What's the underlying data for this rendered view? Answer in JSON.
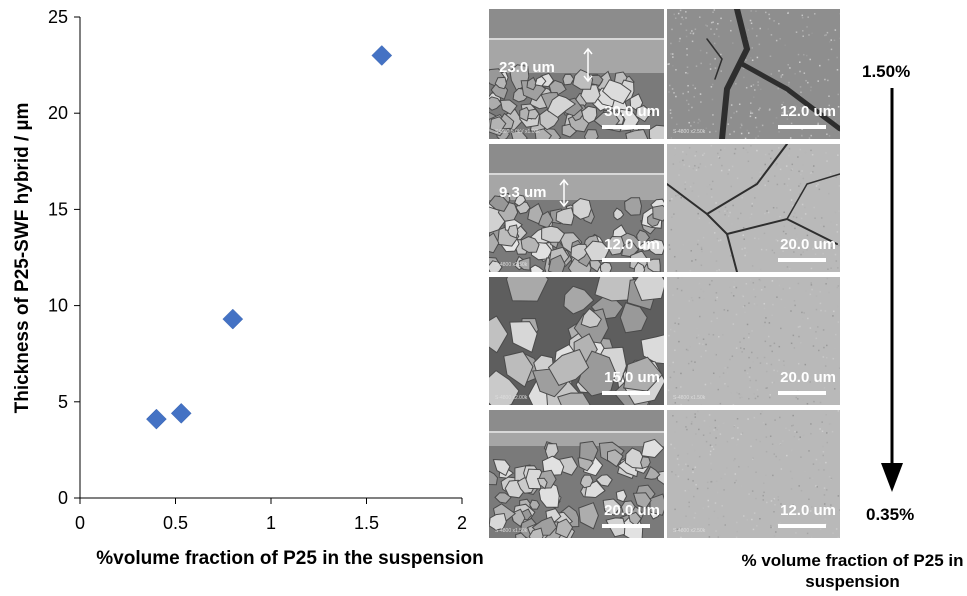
{
  "chart_data": {
    "type": "scatter",
    "xlabel": "%volume fraction of P25 in the suspension",
    "ylabel": "Thickness of P25-SWF hybrid / µm",
    "xlim": [
      0,
      2
    ],
    "ylim": [
      0,
      25
    ],
    "x_ticks": [
      "0",
      "0.5",
      "1",
      "1.5",
      "2"
    ],
    "y_ticks": [
      "0",
      "5",
      "10",
      "15",
      "20",
      "25"
    ],
    "grid": false,
    "marker": "diamond",
    "marker_color": "#4472C4",
    "points": [
      {
        "x": 0.4,
        "y": 4.1
      },
      {
        "x": 0.53,
        "y": 4.4
      },
      {
        "x": 0.8,
        "y": 9.3
      },
      {
        "x": 1.58,
        "y": 23.0
      }
    ]
  },
  "sem_images": {
    "rows": [
      {
        "left": {
          "scale_label": "30.0 um",
          "thickness_label": "23.0 um",
          "micro_text": "S4800 5.0kV x1.00k",
          "kind": "cross-section"
        },
        "right": {
          "scale_label": "12.0 um",
          "micro_text": "S-4800 x2.50k",
          "kind": "surface-cracked-large"
        }
      },
      {
        "left": {
          "scale_label": "12.0 um",
          "thickness_label": "9.3 um",
          "micro_text": "S-4800 x2.50k",
          "kind": "cross-section"
        },
        "right": {
          "scale_label": "20.0 um",
          "micro_text": "",
          "kind": "surface-cracked"
        }
      },
      {
        "left": {
          "scale_label": "15.0 um",
          "micro_text": "S-4800 x2.00k",
          "kind": "particles"
        },
        "right": {
          "scale_label": "20.0 um",
          "micro_text": "S-4800 x1.50k",
          "kind": "surface-smooth"
        }
      },
      {
        "left": {
          "scale_label": "20.0 um",
          "micro_text": "S-4800 x1.50k",
          "kind": "cross-section-thin"
        },
        "right": {
          "scale_label": "12.0 um",
          "micro_text": "S-4800 x2.50k",
          "kind": "surface-smooth"
        }
      }
    ]
  },
  "trend": {
    "top_label": "1.50%",
    "bottom_label": "0.35%",
    "title": "% volume fraction of P25 in suspension"
  }
}
